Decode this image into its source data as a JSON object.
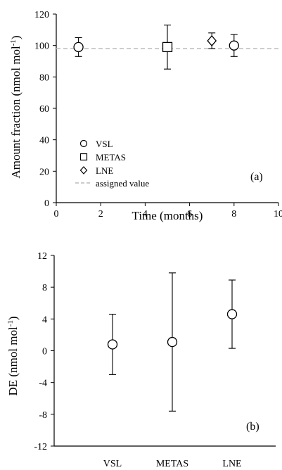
{
  "chart_data": [
    {
      "type": "scatter",
      "panel_label": "(a)",
      "xlabel": "Time (months)",
      "ylabel": "Amount fraction (nmol mol",
      "ylabel_sup": "-1",
      "ylabel_end": ")",
      "xlim": [
        0,
        10
      ],
      "ylim": [
        0,
        120
      ],
      "xticks": [
        "0",
        "2",
        "4",
        "6",
        "8",
        "10"
      ],
      "yticks": [
        "0",
        "20",
        "40",
        "60",
        "80",
        "100",
        "120"
      ],
      "grid": false,
      "legend_position": "bottom-left",
      "reference_line": {
        "label": "assigned value",
        "y": 98,
        "style": "dashed",
        "color": "#bbbbbb"
      },
      "series": [
        {
          "name": "VSL",
          "marker": "circle",
          "points": [
            {
              "x": 1,
              "y": 99,
              "err_low": 93,
              "err_high": 105
            },
            {
              "x": 8,
              "y": 100,
              "err_low": 93,
              "err_high": 107
            }
          ]
        },
        {
          "name": "METAS",
          "marker": "square",
          "points": [
            {
              "x": 5,
              "y": 99,
              "err_low": 85,
              "err_high": 113
            }
          ]
        },
        {
          "name": "LNE",
          "marker": "diamond",
          "points": [
            {
              "x": 7,
              "y": 103,
              "err_low": 98,
              "err_high": 108
            }
          ]
        }
      ]
    },
    {
      "type": "scatter",
      "panel_label": "(b)",
      "xlabel": "",
      "ylabel": "DE (nmol mol",
      "ylabel_sup": "-1",
      "ylabel_end": ")",
      "ylim": [
        -12,
        12
      ],
      "yticks": [
        "-12",
        "-8",
        "-4",
        "0",
        "4",
        "8",
        "12"
      ],
      "grid": false,
      "categories": [
        "VSL",
        "METAS",
        "LNE"
      ],
      "points": [
        {
          "category": "VSL",
          "value": 0.8,
          "err_low": -3.0,
          "err_high": 4.6
        },
        {
          "category": "METAS",
          "value": 1.1,
          "err_low": -7.6,
          "err_high": 9.8
        },
        {
          "category": "LNE",
          "value": 4.6,
          "err_low": 0.3,
          "err_high": 8.9
        }
      ]
    }
  ]
}
